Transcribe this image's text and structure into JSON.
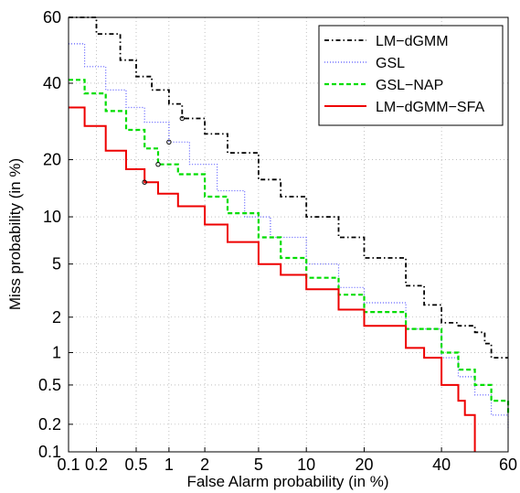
{
  "chart_data": {
    "type": "line",
    "title": "",
    "xlabel": "False Alarm probability (in %)",
    "ylabel": "Miss probability (in %)",
    "x_scale": "probit",
    "y_scale": "probit",
    "xlim": [
      0.1,
      60
    ],
    "ylim": [
      0.1,
      60
    ],
    "x_ticks": [
      {
        "value": 0.1,
        "label": "0.1"
      },
      {
        "value": 0.2,
        "label": "0.2"
      },
      {
        "value": 0.5,
        "label": "0.5"
      },
      {
        "value": 1,
        "label": "1"
      },
      {
        "value": 2,
        "label": "2"
      },
      {
        "value": 5,
        "label": "5"
      },
      {
        "value": 10,
        "label": "10"
      },
      {
        "value": 20,
        "label": "20"
      },
      {
        "value": 40,
        "label": "40"
      },
      {
        "value": 60,
        "label": "60"
      }
    ],
    "y_ticks": [
      {
        "value": 0.1,
        "label": "0.1"
      },
      {
        "value": 0.2,
        "label": "0.2"
      },
      {
        "value": 0.5,
        "label": "0.5"
      },
      {
        "value": 1,
        "label": "1"
      },
      {
        "value": 2,
        "label": "2"
      },
      {
        "value": 5,
        "label": "5"
      },
      {
        "value": 10,
        "label": "10"
      },
      {
        "value": 20,
        "label": "20"
      },
      {
        "value": 40,
        "label": "40"
      },
      {
        "value": 60,
        "label": "60"
      }
    ],
    "grid": true,
    "legend_position": "top-right",
    "series": [
      {
        "name": "LM−dGMM",
        "color": "#000000",
        "dash": "dashdot",
        "points": [
          [
            0.1,
            60
          ],
          [
            0.2,
            55
          ],
          [
            0.35,
            47
          ],
          [
            0.5,
            42
          ],
          [
            0.7,
            38
          ],
          [
            1,
            34
          ],
          [
            1.3,
            30
          ],
          [
            2,
            26
          ],
          [
            3,
            21.5
          ],
          [
            5,
            16
          ],
          [
            7,
            13
          ],
          [
            10,
            10
          ],
          [
            15,
            7.5
          ],
          [
            20,
            5.5
          ],
          [
            30,
            3.5
          ],
          [
            35,
            2.5
          ],
          [
            40,
            1.8
          ],
          [
            45,
            1.7
          ],
          [
            50,
            1.5
          ],
          [
            53,
            1.2
          ],
          [
            55,
            0.9
          ],
          [
            60,
            0.9
          ]
        ],
        "marker": [
          1.3,
          30
        ]
      },
      {
        "name": "GSL",
        "color": "#5a5aff",
        "dash": "dotted",
        "points": [
          [
            0.1,
            52
          ],
          [
            0.15,
            45
          ],
          [
            0.25,
            38
          ],
          [
            0.4,
            33
          ],
          [
            0.6,
            29
          ],
          [
            1,
            24
          ],
          [
            1.5,
            19
          ],
          [
            2.5,
            14
          ],
          [
            4,
            10
          ],
          [
            6,
            7.5
          ],
          [
            10,
            5
          ],
          [
            15,
            3.4
          ],
          [
            20,
            2.6
          ],
          [
            30,
            1.6
          ],
          [
            40,
            0.9
          ],
          [
            45,
            0.6
          ],
          [
            50,
            0.4
          ],
          [
            55,
            0.25
          ],
          [
            60,
            0.18
          ]
        ],
        "marker": [
          1,
          24
        ]
      },
      {
        "name": "GSL−NAP",
        "color": "#00dd00",
        "dash": "dashed",
        "points": [
          [
            0.1,
            41
          ],
          [
            0.15,
            37
          ],
          [
            0.25,
            32
          ],
          [
            0.4,
            27
          ],
          [
            0.6,
            22.5
          ],
          [
            0.8,
            19
          ],
          [
            1.2,
            17
          ],
          [
            2,
            13
          ],
          [
            3,
            10.5
          ],
          [
            5,
            7.5
          ],
          [
            7,
            5.5
          ],
          [
            10,
            4
          ],
          [
            15,
            3
          ],
          [
            20,
            2.2
          ],
          [
            30,
            1.6
          ],
          [
            40,
            1.0
          ],
          [
            45,
            0.7
          ],
          [
            50,
            0.5
          ],
          [
            55,
            0.35
          ],
          [
            60,
            0.25
          ]
        ],
        "marker": [
          0.8,
          19
        ]
      },
      {
        "name": "LM−dGMM−SFA",
        "color": "#ee0000",
        "dash": "solid",
        "points": [
          [
            0.1,
            33
          ],
          [
            0.15,
            28
          ],
          [
            0.25,
            22
          ],
          [
            0.4,
            18
          ],
          [
            0.6,
            15.5
          ],
          [
            0.8,
            13.5
          ],
          [
            1.2,
            11.5
          ],
          [
            2,
            9
          ],
          [
            3,
            7
          ],
          [
            5,
            5
          ],
          [
            7,
            4.2
          ],
          [
            10,
            3.3
          ],
          [
            15,
            2.3
          ],
          [
            20,
            1.7
          ],
          [
            30,
            1.1
          ],
          [
            35,
            0.9
          ],
          [
            40,
            0.5
          ],
          [
            45,
            0.35
          ],
          [
            47,
            0.25
          ],
          [
            50,
            0.1
          ]
        ],
        "marker": [
          0.6,
          15.5
        ]
      }
    ]
  }
}
